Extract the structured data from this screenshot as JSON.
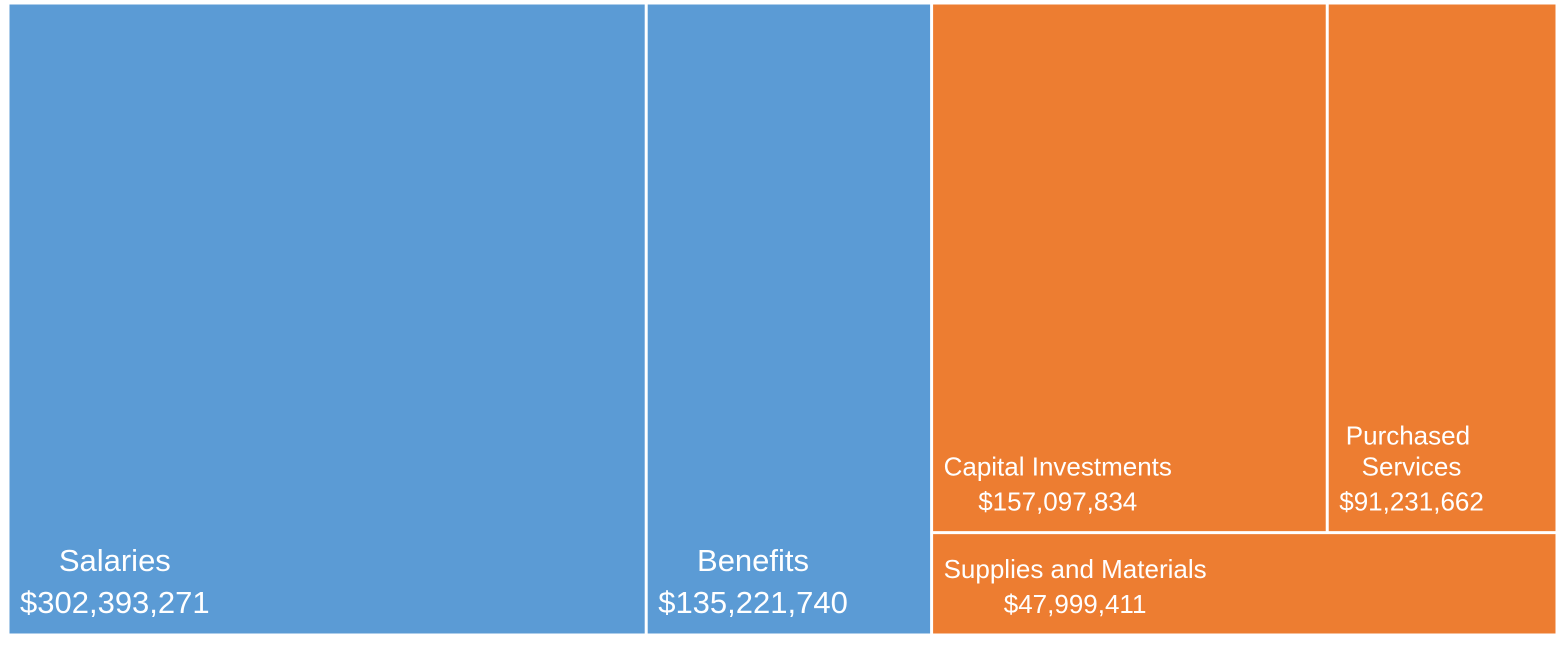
{
  "chart_data": {
    "type": "treemap",
    "series": [
      {
        "color": "#5b9bd5",
        "categories": [
          "Salaries",
          "Benefits"
        ],
        "values": [
          302393271,
          135221740
        ],
        "value_labels": [
          "$302,393,271",
          "$135,221,740"
        ]
      },
      {
        "color": "#ed7d31",
        "categories": [
          "Capital Investments",
          "Purchased Services",
          "Supplies and Materials"
        ],
        "values": [
          157097834,
          91231662,
          47999411
        ],
        "value_labels": [
          "$157,097,834",
          "$91,231,662",
          "$47,999,411"
        ]
      }
    ]
  }
}
